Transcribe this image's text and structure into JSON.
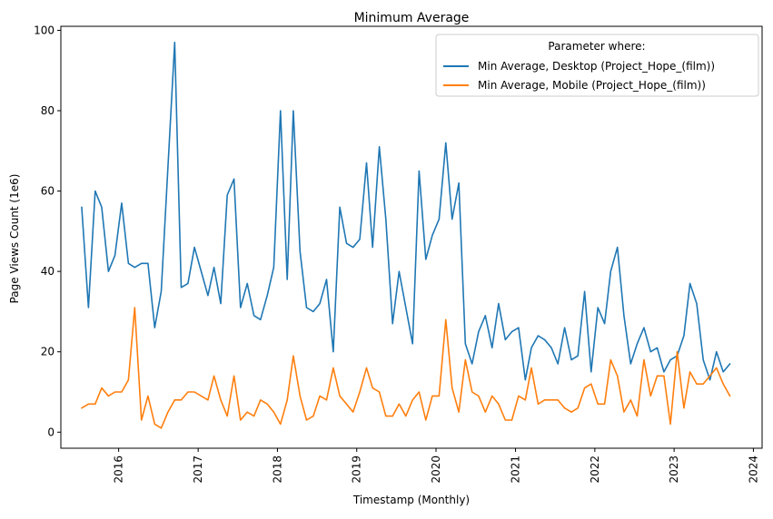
{
  "chart_data": {
    "type": "line",
    "title": "Minimum Average",
    "xlabel": "Timestamp (Monthly)",
    "ylabel": "Page Views Count (1e6)",
    "ylim": [
      -4,
      101
    ],
    "xlim": [
      "2015-04-10",
      "2024-02-10"
    ],
    "x_ticks": [
      "2016",
      "2017",
      "2018",
      "2019",
      "2020",
      "2021",
      "2022",
      "2023",
      "2024"
    ],
    "y_ticks": [
      0,
      20,
      40,
      60,
      80,
      100
    ],
    "grid": false,
    "legend": {
      "title": "Parameter where:",
      "placement": "top-right"
    },
    "x_start": "2015-07",
    "series": [
      {
        "name": "Min Average, Desktop (Project_Hope_(film))",
        "color": "#1f77b4",
        "values": [
          56,
          31,
          60,
          56,
          40,
          44,
          57,
          42,
          41,
          42,
          42,
          26,
          35,
          66,
          97,
          36,
          37,
          46,
          40,
          34,
          41,
          32,
          59,
          63,
          31,
          37,
          29,
          28,
          34,
          41,
          80,
          38,
          80,
          45,
          31,
          30,
          32,
          38,
          20,
          56,
          47,
          46,
          48,
          67,
          46,
          71,
          53,
          27,
          40,
          31,
          22,
          65,
          43,
          49,
          53,
          72,
          53,
          62,
          22,
          17,
          25,
          29,
          21,
          32,
          23,
          25,
          26,
          13,
          21,
          24,
          23,
          21,
          17,
          26,
          18,
          19,
          35,
          15,
          31,
          27,
          40,
          46,
          29,
          17,
          22,
          26,
          20,
          21,
          15,
          18,
          19,
          24,
          37,
          32,
          18,
          13,
          20,
          15,
          17
        ]
      },
      {
        "name": "Min Average, Mobile (Project_Hope_(film))",
        "color": "#ff7f0e",
        "values": [
          6,
          7,
          7,
          11,
          9,
          10,
          10,
          13,
          31,
          3,
          9,
          2,
          1,
          5,
          8,
          8,
          10,
          10,
          9,
          8,
          14,
          8,
          4,
          14,
          3,
          5,
          4,
          8,
          7,
          5,
          2,
          8,
          19,
          9,
          3,
          4,
          9,
          8,
          16,
          9,
          7,
          5,
          10,
          16,
          11,
          10,
          4,
          4,
          7,
          4,
          8,
          10,
          3,
          9,
          9,
          28,
          11,
          5,
          18,
          10,
          9,
          5,
          9,
          7,
          3,
          3,
          9,
          8,
          16,
          7,
          8,
          8,
          8,
          6,
          5,
          6,
          11,
          12,
          7,
          7,
          18,
          14,
          5,
          8,
          4,
          18,
          9,
          14,
          14,
          2,
          20,
          6,
          15,
          12,
          12,
          14,
          16,
          12,
          9
        ]
      }
    ]
  }
}
